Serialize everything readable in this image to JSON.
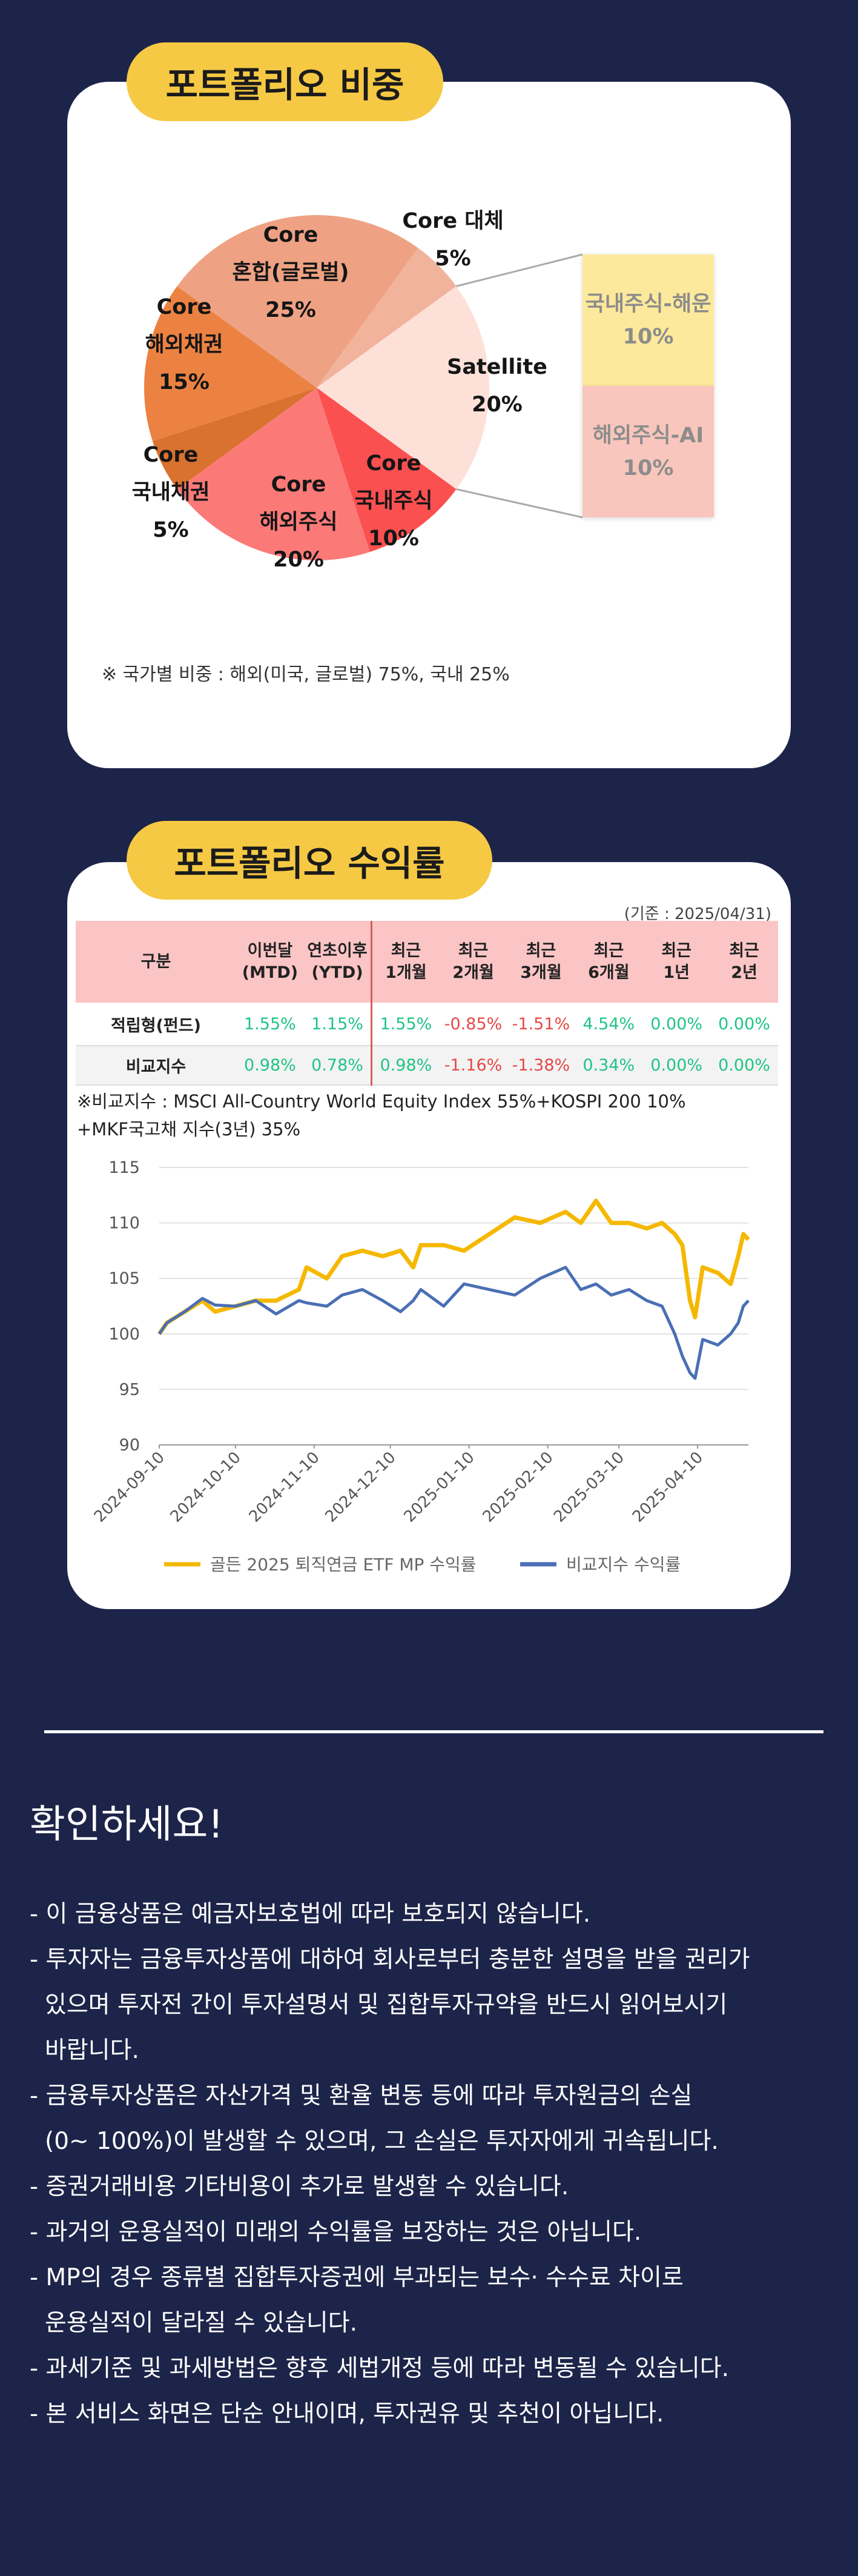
{
  "portfolio_title": "포트폴리오 비중",
  "returns_title": "포트폴리오 수익률",
  "chart_data": [
    {
      "type": "pie",
      "categories": [
        "Core\n혼합(글로벌)",
        "Core 대체",
        "Satellite",
        "Core\n국내주식",
        "Core\n해외주식",
        "Core\n국내채권",
        "Core\n해외채권"
      ],
      "values": [
        25,
        5,
        20,
        10,
        20,
        5,
        15
      ],
      "value_labels": [
        "25%",
        "5%",
        "20%",
        "10%",
        "20%",
        "5%",
        "15%"
      ],
      "colors": [
        "#eea283",
        "#f1b39b",
        "#fde1d9",
        "#fb5050",
        "#fb7a78",
        "#d9712f",
        "#ec8242"
      ]
    },
    {
      "type": "line",
      "x": [
        "2024-09-10",
        "2024-09-13",
        "2024-09-20",
        "2024-09-27",
        "2024-10-02",
        "2024-10-10",
        "2024-10-18",
        "2024-10-26",
        "2024-11-04",
        "2024-11-07",
        "2024-11-15",
        "2024-11-21",
        "2024-11-29",
        "2024-12-07",
        "2024-12-14",
        "2024-12-19",
        "2024-12-22",
        "2024-12-31",
        "2025-01-08",
        "2025-01-18",
        "2025-01-28",
        "2025-02-07",
        "2025-02-17",
        "2025-02-23",
        "2025-03-01",
        "2025-03-07",
        "2025-03-14",
        "2025-03-21",
        "2025-03-27",
        "2025-04-01",
        "2025-04-04",
        "2025-04-07",
        "2025-04-09",
        "2025-04-12",
        "2025-04-18",
        "2025-04-23",
        "2025-04-26",
        "2025-04-28",
        "2025-04-30"
      ],
      "series": [
        {
          "name": "골든 2025 퇴직연금 ETF MP 수익률",
          "color": "#f5b800",
          "values": [
            100,
            101,
            102,
            103,
            102,
            102.5,
            103,
            103,
            104,
            106,
            105,
            107,
            107.5,
            107,
            107.5,
            106,
            108,
            108,
            107.5,
            109,
            110.5,
            110,
            111,
            110,
            112,
            110,
            110,
            109.5,
            110,
            109,
            108,
            103,
            101.5,
            106,
            105.5,
            104.5,
            107,
            109,
            108.5
          ]
        },
        {
          "name": "비교지수 수익률",
          "color": "#4a6fb5",
          "values": [
            100,
            101,
            102,
            103.2,
            102.6,
            102.5,
            103,
            101.8,
            103,
            102.8,
            102.5,
            103.5,
            104,
            103,
            102,
            103,
            104,
            102.5,
            104.5,
            104,
            103.5,
            105,
            106,
            104,
            104.5,
            103.5,
            104,
            103,
            102.5,
            100,
            98,
            96.5,
            96,
            99.5,
            99,
            100,
            101,
            102.5,
            103
          ]
        }
      ],
      "xlim": [
        "2024-09-10",
        "2025-04-30"
      ],
      "xticks": [
        "2024-09-10",
        "2024-10-10",
        "2024-11-10",
        "2024-12-10",
        "2025-01-10",
        "2025-02-10",
        "2025-03-10",
        "2025-04-10"
      ],
      "ylim": [
        90,
        115
      ],
      "yticks": [
        90,
        95,
        100,
        105,
        110,
        115
      ],
      "grid": true,
      "legend": "bottom"
    }
  ],
  "satellite_breakdown": [
    {
      "label": "국내주식-해운",
      "value": "10%",
      "color": "#fde99c"
    },
    {
      "label": "해외주식-AI",
      "value": "10%",
      "color": "#f8c6bc"
    }
  ],
  "country_note": "※ 국가별 비중 : 해외(미국, 글로벌) 75%, 국내 25%",
  "table": {
    "basis": "(기준 : 2025/04/31)",
    "header": [
      "구분",
      "이번달\n(MTD)",
      "연초이후\n(YTD)",
      "최근\n1개월",
      "최근\n2개월",
      "최근\n3개월",
      "최근\n6개월",
      "최근\n1년",
      "최근\n2년"
    ],
    "rows": [
      {
        "label": "적립형(펀드)",
        "cells": [
          "1.55%",
          "1.15%",
          "1.55%",
          "-0.85%",
          "-1.51%",
          "4.54%",
          "0.00%",
          "0.00%"
        ]
      },
      {
        "label": "비교지수",
        "cells": [
          "0.98%",
          "0.78%",
          "0.98%",
          "-1.16%",
          "-1.38%",
          "0.34%",
          "0.00%",
          "0.00%"
        ]
      }
    ]
  },
  "index_note": "※비교지수 : MSCI All-Country World Equity Index 55%+KOSPI 200 10%\n+MKF국고채 지수(3년) 35%",
  "notice": {
    "title": "확인하세요!",
    "items": [
      "- 이 금융상품은 예금자보호법에 따라 보호되지 않습니다.",
      "- 투자자는 금융투자상품에 대하여 회사로부터 충분한 설명을 받을 권리가\n있으며 투자전 간이 투자설명서 및 집합투자규약을 반드시 읽어보시기\n바랍니다.",
      "- 금융투자상품은 자산가격 및 환율 변동 등에 따라 투자원금의 손실\n(0~ 100%)이 발생할 수 있으며, 그 손실은 투자자에게 귀속됩니다.",
      "- 증권거래비용 기타비용이 추가로 발생할 수 있습니다.",
      "- 과거의 운용실적이 미래의 수익률을 보장하는 것은 아닙니다.",
      "- MP의 경우 종류별 집합투자증권에 부과되는 보수· 수수료 차이로\n운용실적이 달라질 수 있습니다.",
      "- 과세기준 및 과세방법은 향후 세법개정 등에 따라 변동될 수 있습니다.",
      "- 본 서비스 화면은 단순 안내이며, 투자권유 및 추천이 아닙니다."
    ]
  }
}
